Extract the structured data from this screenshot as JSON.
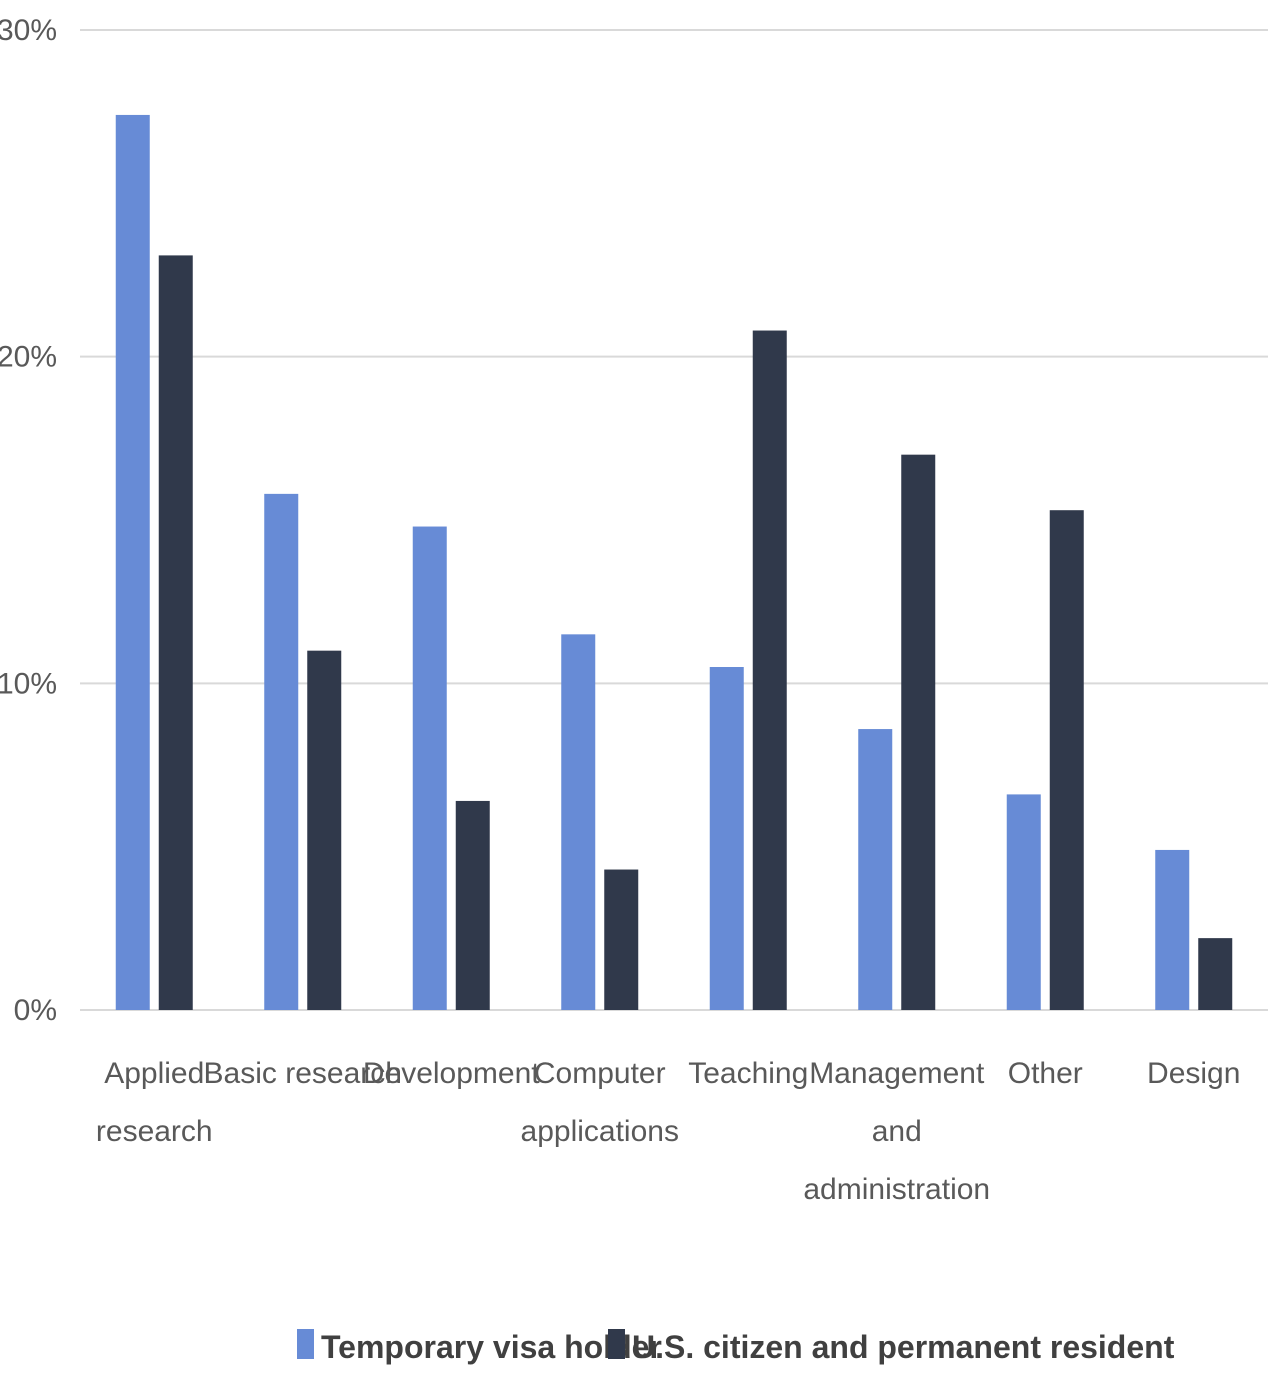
{
  "chart_data": {
    "type": "bar",
    "title": "",
    "xlabel": "",
    "ylabel": "",
    "ylim": [
      0,
      30
    ],
    "yticks": [
      0,
      10,
      20,
      30
    ],
    "ytick_labels": [
      "0%",
      "10%",
      "20%",
      "30%"
    ],
    "grid": true,
    "legend_position": "bottom",
    "categories": [
      [
        "Applied",
        "research"
      ],
      [
        "Basic research"
      ],
      [
        "Development"
      ],
      [
        "Computer",
        "applications"
      ],
      [
        "Teaching"
      ],
      [
        "Management",
        "and",
        "administration"
      ],
      [
        "Other"
      ],
      [
        "Design"
      ]
    ],
    "series": [
      {
        "name": "Temporary visa holder",
        "color": "#678bd6",
        "values": [
          27.4,
          15.8,
          14.8,
          11.5,
          10.5,
          8.6,
          6.6,
          4.9
        ]
      },
      {
        "name": "U.S. citizen and permanent resident",
        "color": "#30394b",
        "values": [
          23.1,
          11.0,
          6.4,
          4.3,
          20.8,
          17.0,
          15.3,
          2.2
        ]
      }
    ]
  }
}
